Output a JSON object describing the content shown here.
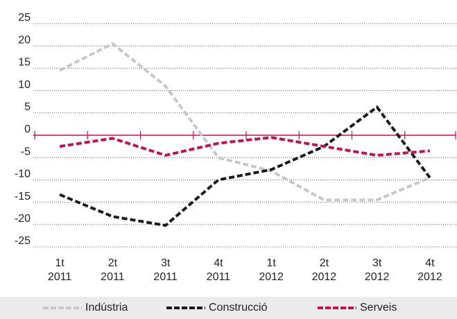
{
  "chart_data": {
    "type": "line",
    "categories": [
      "1t\n2011",
      "2t\n2011",
      "3t\n2011",
      "4t\n2011",
      "1t\n2012",
      "2t\n2012",
      "3t\n2012",
      "4t\n2012"
    ],
    "series": [
      {
        "name": "Indústria",
        "color": "#c8c8c8",
        "values": [
          14.5,
          20.5,
          11,
          -5,
          -8,
          -14.5,
          -14.5,
          -9.5
        ]
      },
      {
        "name": "Construcció",
        "color": "#1a1a1a",
        "values": [
          -13.3,
          -18.2,
          -20.2,
          -10,
          -7.7,
          -2.5,
          6.3,
          -9.5
        ]
      },
      {
        "name": "Serveis",
        "color": "#c8104a",
        "values": [
          -2.5,
          -0.7,
          -4.5,
          -1.8,
          -0.5,
          -2.5,
          -4.5,
          -3.5
        ]
      }
    ],
    "ylim": [
      -25,
      25
    ],
    "yticks": [
      -25,
      -20,
      -15,
      -10,
      -5,
      0,
      5,
      10,
      15,
      20,
      25
    ],
    "grid": true,
    "axis_color": "#c8104a",
    "legend": "bottom"
  }
}
